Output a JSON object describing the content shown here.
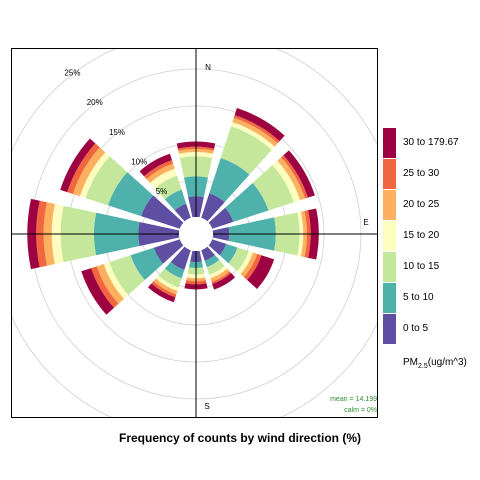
{
  "chart_data": {
    "type": "polar-bar",
    "title": "Frequency of counts by wind direction (%)",
    "directions": [
      0,
      30,
      60,
      90,
      120,
      150,
      180,
      210,
      240,
      270,
      300,
      330
    ],
    "compass": [
      "N",
      "E",
      "S"
    ],
    "radial_ticks": [
      5,
      10,
      15,
      20,
      25
    ],
    "radial_tick_labels": [
      "5%",
      "10%",
      "15%",
      "20%",
      "25%"
    ],
    "rmax": 25,
    "legend_title_main": "PM",
    "legend_title_sub": "2.5",
    "legend_title_unit": "(ug/m^3)",
    "bins": [
      {
        "label": "0 to 5",
        "color": "#5E4FA2"
      },
      {
        "label": "5 to 10",
        "color": "#4FB1AC"
      },
      {
        "label": "10 to 15",
        "color": "#C4E79C"
      },
      {
        "label": "15 to 20",
        "color": "#FDFDBF"
      },
      {
        "label": "20 to 25",
        "color": "#FDB05F"
      },
      {
        "label": "25 to 30",
        "color": "#F2663F"
      },
      {
        "label": "30 to 179.67",
        "color": "#9E0142"
      }
    ],
    "cumulative": [
      [
        2.8,
        5.5,
        8.2,
        8.8,
        9.2,
        9.5,
        10.2
      ],
      [
        3.5,
        8.5,
        13.0,
        13.6,
        14.2,
        14.6,
        15.6
      ],
      [
        3.0,
        8.0,
        11.6,
        12.5,
        13.2,
        13.6,
        14.6
      ],
      [
        2.2,
        8.5,
        11.7,
        12.2,
        12.7,
        13.2,
        14.3
      ],
      [
        2.0,
        3.6,
        5.2,
        5.8,
        6.4,
        7.0,
        8.8
      ],
      [
        1.5,
        2.4,
        3.5,
        4.0,
        4.5,
        4.8,
        5.6
      ],
      [
        1.5,
        2.3,
        3.2,
        3.7,
        4.1,
        4.5,
        5.2
      ],
      [
        2.8,
        4.0,
        5.3,
        5.8,
        6.3,
        6.7,
        7.4
      ],
      [
        3.7,
        7.0,
        10.0,
        10.8,
        11.8,
        12.6,
        14.0
      ],
      [
        5.5,
        11.5,
        16.0,
        17.2,
        18.3,
        19.3,
        20.5
      ],
      [
        5.5,
        10.2,
        13.4,
        14.2,
        15.2,
        16.0,
        17.0
      ],
      [
        2.0,
        4.0,
        6.0,
        7.0,
        7.7,
        8.2,
        9.1
      ]
    ],
    "stats": [
      "mean = 14.199",
      "calm = 0%"
    ]
  }
}
